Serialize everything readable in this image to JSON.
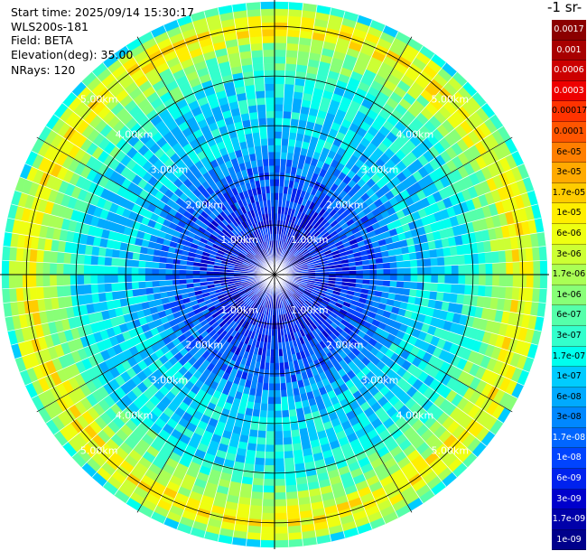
{
  "header": {
    "start_time": "Start time: 2025/09/14 15:30:17",
    "instrument": "WLS200s-181",
    "field": "Field: BETA",
    "elevation": "Elevation(deg): 35.00",
    "nrays": "NRays: 120"
  },
  "colorbar": {
    "unit_label": "-1 sr-",
    "labels": [
      "0.0017",
      "0.001",
      "0.0006",
      "0.0003",
      "0.00017",
      "0.0001",
      "6e-05",
      "3e-05",
      "1.7e-05",
      "1e-05",
      "6e-06",
      "3e-06",
      "1.7e-06",
      "1e-06",
      "6e-07",
      "3e-07",
      "1.7e-07",
      "1e-07",
      "6e-08",
      "3e-08",
      "1.7e-08",
      "1e-08",
      "6e-09",
      "3e-09",
      "1.7e-09",
      "1e-09"
    ],
    "colors": [
      "#8b0000",
      "#a80000",
      "#cc0000",
      "#ee0000",
      "#ff3300",
      "#ff5500",
      "#ff7f00",
      "#ffaa00",
      "#ffcc00",
      "#ffee00",
      "#eeff11",
      "#ccff33",
      "#aaff55",
      "#88ff77",
      "#55ffaa",
      "#33ffcc",
      "#00ffee",
      "#00ccff",
      "#00aaff",
      "#0088ff",
      "#0066ff",
      "#0044ff",
      "#0022ee",
      "#0000cc",
      "#0000aa",
      "#00008b"
    ],
    "text_colors": [
      "#fff",
      "#fff",
      "#fff",
      "#fff",
      "#000",
      "#000",
      "#000",
      "#000",
      "#000",
      "#000",
      "#000",
      "#000",
      "#000",
      "#000",
      "#000",
      "#000",
      "#000",
      "#000",
      "#000",
      "#000",
      "#fff",
      "#fff",
      "#fff",
      "#fff",
      "#fff",
      "#fff"
    ]
  },
  "chart_data": {
    "type": "heatmap",
    "projection": "polar PPI",
    "nrays": 120,
    "range_rings_km": [
      1,
      2,
      3,
      4,
      5
    ],
    "range_ring_labels": [
      "1.00km",
      "2.00km",
      "3.00km",
      "4.00km",
      "5.00km"
    ],
    "max_range_km": 5.0,
    "azimuth_spokes_deg": [
      0,
      30,
      60,
      90,
      120,
      150,
      180,
      210,
      240,
      270,
      300,
      330
    ],
    "color_scale": "log",
    "color_range": [
      1e-09,
      0.0017
    ],
    "radial_profile_log10_beta": [
      {
        "range_km": 0.0,
        "value": -8.5
      },
      {
        "range_km": 1.0,
        "value": -8.2
      },
      {
        "range_km": 2.0,
        "value": -7.6
      },
      {
        "range_km": 2.5,
        "value": -7.0
      },
      {
        "range_km": 3.5,
        "value": -6.8
      },
      {
        "range_km": 4.2,
        "value": -5.8
      },
      {
        "range_km": 4.5,
        "value": -5.0
      },
      {
        "range_km": 4.8,
        "value": -5.6
      },
      {
        "range_km": 5.0,
        "value": -7.0
      }
    ]
  }
}
